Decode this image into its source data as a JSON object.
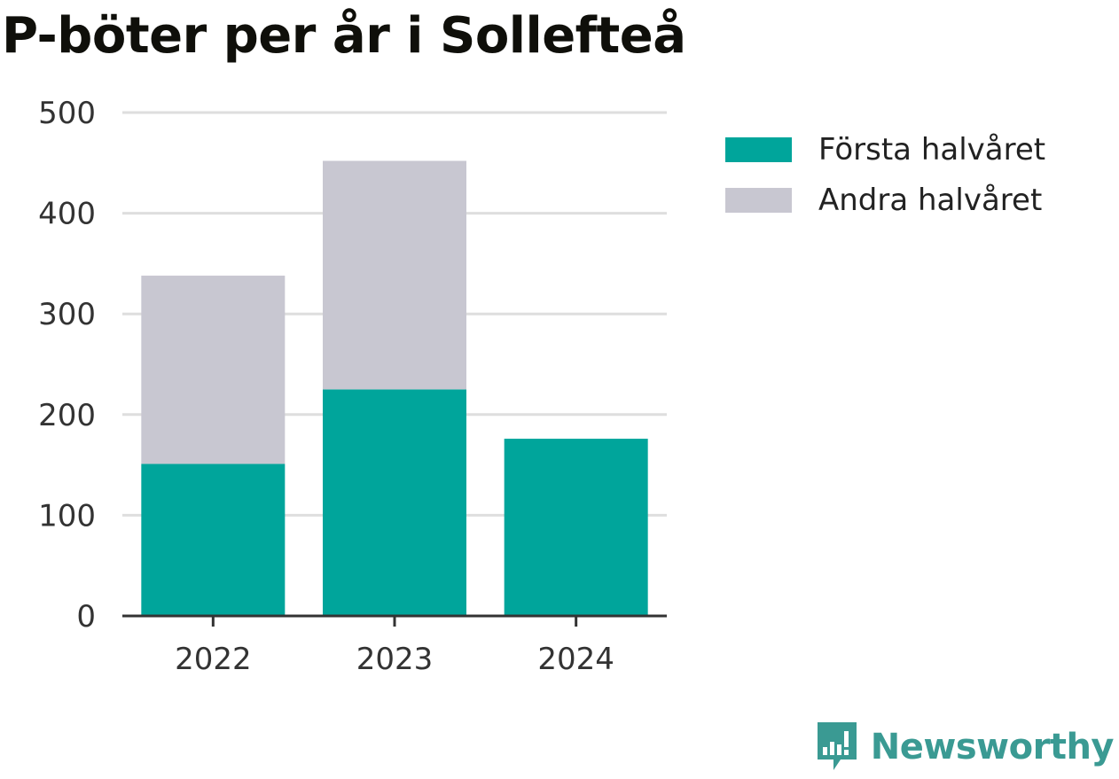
{
  "title": "P-böter per år i Sollefteå",
  "brand": "Newsworthy",
  "colors": {
    "first_half": "#00a59b",
    "second_half": "#c8c7d1",
    "brand": "#3a9a93"
  },
  "chart_data": {
    "type": "bar",
    "stacked": true,
    "title": "P-böter per år i Sollefteå",
    "categories": [
      "2022",
      "2023",
      "2024"
    ],
    "series": [
      {
        "name": "Första halvåret",
        "values": [
          151,
          225,
          176
        ]
      },
      {
        "name": "Andra halvåret",
        "values": [
          187,
          227,
          0
        ]
      }
    ],
    "ylim": [
      0,
      500
    ],
    "yticks": [
      0,
      100,
      200,
      300,
      400,
      500
    ],
    "grid": true,
    "legend": "right"
  }
}
